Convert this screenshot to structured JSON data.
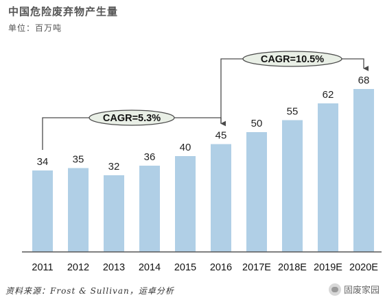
{
  "header": {
    "title": "中国危险废弃物产生量",
    "unit": "单位：百万吨"
  },
  "footer": {
    "source": "资料来源：Frost & Sullivan，运卓分析",
    "watermark": "固废家园"
  },
  "colors": {
    "bar": "#b0cfe6",
    "axis": "#555555",
    "annotation_line": "#4a4a4a",
    "annotation_fill": "#e9efe6"
  },
  "chart_data": {
    "type": "bar",
    "title": "中国危险废弃物产生量",
    "xlabel": "",
    "ylabel": "",
    "categories": [
      "2011",
      "2012",
      "2013",
      "2014",
      "2015",
      "2016",
      "2017E",
      "2018E",
      "2019E",
      "2020E"
    ],
    "values": [
      34,
      35,
      32,
      36,
      40,
      45,
      50,
      55,
      62,
      68
    ],
    "ylim": [
      0,
      75
    ],
    "grid": false,
    "legend": "none",
    "annotations": [
      {
        "text": "CAGR=5.3%",
        "from": "2011",
        "to": "2016"
      },
      {
        "text": "CAGR=10.5%",
        "from": "2016",
        "to": "2020E"
      }
    ]
  }
}
